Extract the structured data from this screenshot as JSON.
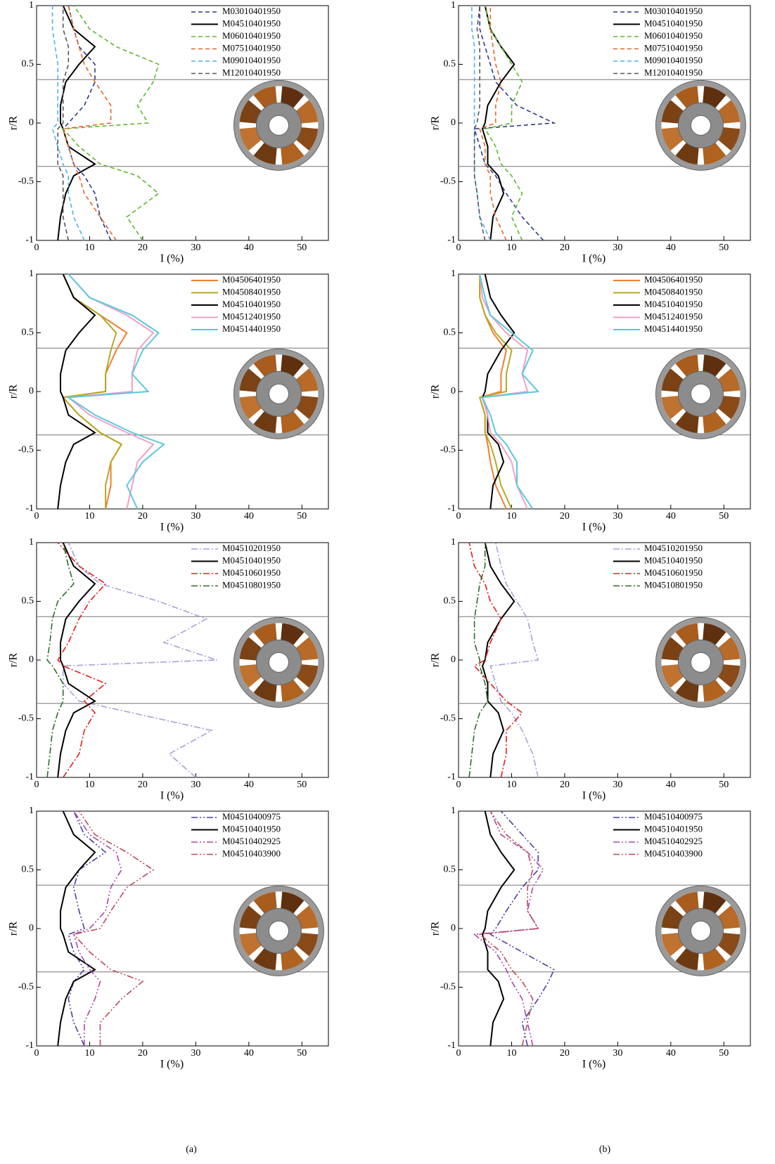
{
  "captions": [
    "(a)",
    "(b)"
  ],
  "chart_data": [
    {
      "type": "line",
      "xlabel": "I (%)",
      "ylabel": "r/R",
      "xlim": [
        0,
        55
      ],
      "xticks": [
        0,
        10,
        20,
        30,
        40,
        50
      ],
      "ylim": [
        -1,
        1
      ],
      "yticks": [
        -1,
        -0.5,
        0,
        0.5,
        1
      ],
      "hlines": [
        0.37,
        -0.37
      ],
      "y": [
        -1,
        -0.8,
        -0.6,
        -0.45,
        -0.35,
        -0.2,
        -0.05,
        0,
        0.15,
        0.35,
        0.5,
        0.65,
        0.8,
        1
      ],
      "series": [
        {
          "name": "M03010401950",
          "color": "#2b3990",
          "dash": "dashed",
          "values": [
            14,
            12,
            11,
            9,
            7,
            6,
            5,
            6,
            9,
            11,
            11,
            8,
            7,
            6
          ]
        },
        {
          "name": "M04510401950",
          "color": "#000000",
          "dash": "solid",
          "values": [
            4,
            4.5,
            5.5,
            7,
            11,
            6,
            5,
            4.5,
            4.5,
            5.5,
            8,
            11,
            7,
            5
          ]
        },
        {
          "name": "M06010401950",
          "color": "#5cb82e",
          "dash": "dashed",
          "values": [
            20,
            17,
            23,
            19,
            12,
            8,
            5,
            21,
            19,
            22,
            23,
            15,
            10,
            7
          ]
        },
        {
          "name": "M07510401950",
          "color": "#e0682a",
          "dash": "dashed",
          "values": [
            15,
            12,
            9,
            8,
            7,
            6,
            5,
            14,
            14,
            11,
            9,
            8,
            7,
            6
          ]
        },
        {
          "name": "M09010401950",
          "color": "#4bb4e6",
          "dash": "dashed",
          "values": [
            9,
            7,
            6,
            6,
            5,
            4,
            3,
            4,
            4,
            4,
            4,
            3.5,
            3,
            3
          ]
        },
        {
          "name": "M12010401950",
          "color": "#555555",
          "dash": "dashed",
          "values": [
            6,
            5,
            5,
            5,
            4,
            4,
            4,
            5,
            5,
            5,
            6,
            6,
            5,
            5
          ]
        }
      ]
    },
    {
      "type": "line",
      "xlabel": "I (%)",
      "ylabel": "r/R",
      "xlim": [
        0,
        55
      ],
      "xticks": [
        0,
        10,
        20,
        30,
        40,
        50
      ],
      "ylim": [
        -1,
        1
      ],
      "yticks": [
        -1,
        -0.5,
        0,
        0.5,
        1
      ],
      "hlines": [
        0.37,
        -0.37
      ],
      "y": [
        -1,
        -0.8,
        -0.6,
        -0.45,
        -0.35,
        -0.2,
        -0.05,
        0,
        0.15,
        0.35,
        0.5,
        0.65,
        0.8,
        1
      ],
      "series": [
        {
          "name": "M04506401950",
          "color": "#f07f2f",
          "dash": "solid",
          "values": [
            13,
            14,
            14,
            16,
            12,
            8,
            5,
            13,
            13,
            15,
            17,
            12,
            7,
            5
          ]
        },
        {
          "name": "M04508401950",
          "color": "#b5a823",
          "dash": "solid",
          "values": [
            13,
            13,
            14,
            16,
            12,
            8,
            5,
            13,
            13,
            14,
            15,
            12,
            7,
            5
          ]
        },
        {
          "name": "M04510401950",
          "color": "#000000",
          "dash": "solid",
          "values": [
            4,
            4.5,
            5.5,
            7,
            11,
            6,
            5,
            4.5,
            4.5,
            5.5,
            8,
            11,
            7,
            5
          ]
        },
        {
          "name": "M04512401950",
          "color": "#f0a0c8",
          "dash": "solid",
          "values": [
            17,
            18,
            19,
            22,
            17,
            10,
            6,
            18,
            18,
            19,
            22,
            17,
            10,
            6
          ]
        },
        {
          "name": "M04514401950",
          "color": "#5bc8dc",
          "dash": "solid",
          "values": [
            19,
            17,
            20,
            24,
            18,
            11,
            6,
            21,
            18,
            20,
            23,
            18,
            10,
            6
          ]
        }
      ]
    },
    {
      "type": "line",
      "xlabel": "I (%)",
      "ylabel": "r/R",
      "xlim": [
        0,
        55
      ],
      "xticks": [
        0,
        10,
        20,
        30,
        40,
        50
      ],
      "ylim": [
        -1,
        1
      ],
      "yticks": [
        -1,
        -0.5,
        0,
        0.5,
        1
      ],
      "hlines": [
        0.37,
        -0.37
      ],
      "y": [
        -1,
        -0.8,
        -0.6,
        -0.45,
        -0.35,
        -0.2,
        -0.05,
        0,
        0.15,
        0.35,
        0.5,
        0.65,
        0.8,
        1
      ],
      "series": [
        {
          "name": "M04510201950",
          "color": "#a9a0d8",
          "dash": "dashdot",
          "values": [
            30,
            25,
            33,
            18,
            8,
            5,
            5,
            34,
            24,
            32,
            23,
            12,
            8,
            6
          ]
        },
        {
          "name": "M04510401950",
          "color": "#000000",
          "dash": "solid",
          "values": [
            4,
            4.5,
            5.5,
            7,
            11,
            6,
            5,
            4.5,
            4.5,
            5.5,
            8,
            11,
            7,
            5
          ]
        },
        {
          "name": "M04510601950",
          "color": "#e02020",
          "dash": "dashdot",
          "values": [
            5,
            8,
            9,
            11,
            9,
            13,
            5,
            4,
            6,
            8,
            10,
            13,
            8,
            4
          ]
        },
        {
          "name": "M04510801950",
          "color": "#2b6e2b",
          "dash": "dashdot",
          "values": [
            2,
            2.5,
            3,
            4,
            5,
            5,
            3,
            2,
            2.5,
            3,
            4,
            7,
            6,
            5
          ]
        }
      ]
    },
    {
      "type": "line",
      "xlabel": "I (%)",
      "ylabel": "r/R",
      "xlim": [
        0,
        55
      ],
      "xticks": [
        0,
        10,
        20,
        30,
        40,
        50
      ],
      "ylim": [
        -1,
        1
      ],
      "yticks": [
        -1,
        -0.5,
        0,
        0.5,
        1
      ],
      "hlines": [
        0.37,
        -0.37
      ],
      "y": [
        -1,
        -0.8,
        -0.6,
        -0.45,
        -0.35,
        -0.2,
        -0.05,
        0,
        0.15,
        0.35,
        0.5,
        0.65,
        0.8,
        1
      ],
      "series": [
        {
          "name": "M04510400975",
          "color": "#4a3fa0",
          "dash": "dashdotdot",
          "values": [
            9,
            7,
            6,
            7,
            9,
            7,
            6,
            9,
            8,
            7,
            8,
            13,
            9,
            7
          ]
        },
        {
          "name": "M04510401950",
          "color": "#000000",
          "dash": "solid",
          "values": [
            4,
            4.5,
            5.5,
            7,
            11,
            6,
            5,
            4.5,
            4.5,
            5.5,
            8,
            11,
            7,
            5
          ]
        },
        {
          "name": "M04510402925",
          "color": "#a54aa5",
          "dash": "dashdotdot",
          "values": [
            9,
            9,
            11,
            12,
            10,
            8,
            7,
            10,
            13,
            14,
            16,
            15,
            10,
            7
          ]
        },
        {
          "name": "M04510403900",
          "color": "#b84a5a",
          "dash": "dashdotdot",
          "values": [
            12,
            12,
            16,
            20,
            14,
            10,
            7,
            12,
            14,
            17,
            22,
            17,
            11,
            8
          ]
        }
      ]
    },
    {
      "type": "line",
      "xlabel": "I (%)",
      "ylabel": "r/R",
      "xlim": [
        0,
        55
      ],
      "xticks": [
        0,
        10,
        20,
        30,
        40,
        50
      ],
      "ylim": [
        -1,
        1
      ],
      "yticks": [
        -1,
        -0.5,
        0,
        0.5,
        1
      ],
      "hlines": [
        0.37,
        -0.37
      ],
      "y": [
        -1,
        -0.8,
        -0.6,
        -0.45,
        -0.35,
        -0.2,
        -0.05,
        0,
        0.15,
        0.35,
        0.5,
        0.65,
        0.8,
        1
      ],
      "series": [
        {
          "name": "M03010401950",
          "color": "#2b3990",
          "dash": "dashed",
          "values": [
            16,
            12,
            9,
            7,
            5,
            4,
            3,
            18,
            11,
            7,
            6,
            5,
            4,
            4
          ]
        },
        {
          "name": "M04510401950",
          "color": "#000000",
          "dash": "solid",
          "values": [
            6,
            6.5,
            8.5,
            7.5,
            5.5,
            5.5,
            4.5,
            5,
            5.5,
            8,
            10.5,
            8,
            6,
            5
          ]
        },
        {
          "name": "M06010401950",
          "color": "#5cb82e",
          "dash": "dashed",
          "values": [
            12,
            10,
            12,
            10,
            8,
            7,
            5,
            10,
            10,
            12,
            10,
            8,
            6,
            5
          ]
        },
        {
          "name": "M07510401950",
          "color": "#e0682a",
          "dash": "dashed",
          "values": [
            9,
            7,
            6,
            6,
            5,
            5,
            4,
            7,
            7,
            8,
            7,
            6.5,
            6,
            6
          ]
        },
        {
          "name": "M09010401950",
          "color": "#4bb4e6",
          "dash": "dashed",
          "values": [
            6,
            4,
            3.5,
            3,
            3,
            3,
            3,
            3,
            3,
            3,
            3,
            3,
            2.5,
            2.5
          ]
        },
        {
          "name": "M12010401950",
          "color": "#555555",
          "dash": "dashed",
          "values": [
            5,
            4,
            3.5,
            3,
            3,
            3,
            3,
            3.5,
            4,
            4,
            4,
            4,
            3.5,
            4
          ]
        }
      ]
    },
    {
      "type": "line",
      "xlabel": "I (%)",
      "ylabel": "r/R",
      "xlim": [
        0,
        55
      ],
      "xticks": [
        0,
        10,
        20,
        30,
        40,
        50
      ],
      "ylim": [
        -1,
        1
      ],
      "yticks": [
        -1,
        -0.5,
        0,
        0.5,
        1
      ],
      "hlines": [
        0.37,
        -0.37
      ],
      "y": [
        -1,
        -0.8,
        -0.6,
        -0.45,
        -0.35,
        -0.2,
        -0.05,
        0,
        0.15,
        0.35,
        0.5,
        0.65,
        0.8,
        1
      ],
      "series": [
        {
          "name": "M04506401950",
          "color": "#f07f2f",
          "dash": "solid",
          "values": [
            9,
            7,
            6,
            5.5,
            5,
            5,
            4,
            8,
            8,
            9,
            6.5,
            5,
            4,
            4
          ]
        },
        {
          "name": "M04508401950",
          "color": "#b5a823",
          "dash": "solid",
          "values": [
            10,
            8,
            7,
            6,
            5,
            5,
            4,
            9,
            9,
            10,
            7,
            5,
            4,
            4
          ]
        },
        {
          "name": "M04510401950",
          "color": "#000000",
          "dash": "solid",
          "values": [
            6,
            6.5,
            8.5,
            7.5,
            5.5,
            5.5,
            4.5,
            5,
            5.5,
            8,
            10.5,
            8,
            6,
            5
          ]
        },
        {
          "name": "M04512401950",
          "color": "#f0a0c8",
          "dash": "solid",
          "values": [
            13,
            11,
            10,
            8,
            6,
            5.5,
            4.5,
            13,
            12,
            13,
            9,
            6,
            4.5,
            4
          ]
        },
        {
          "name": "M04514401950",
          "color": "#5bc8dc",
          "dash": "solid",
          "values": [
            14,
            11,
            11,
            9,
            7,
            6,
            4.5,
            15,
            12,
            14,
            10,
            6,
            5,
            4
          ]
        }
      ]
    },
    {
      "type": "line",
      "xlabel": "I (%)",
      "ylabel": "r/R",
      "xlim": [
        0,
        55
      ],
      "xticks": [
        0,
        10,
        20,
        30,
        40,
        50
      ],
      "ylim": [
        -1,
        1
      ],
      "yticks": [
        -1,
        -0.5,
        0,
        0.5,
        1
      ],
      "hlines": [
        0.37,
        -0.37
      ],
      "y": [
        -1,
        -0.8,
        -0.6,
        -0.45,
        -0.35,
        -0.2,
        -0.05,
        0,
        0.15,
        0.35,
        0.5,
        0.65,
        0.8,
        1
      ],
      "series": [
        {
          "name": "M04510201950",
          "color": "#a9a0d8",
          "dash": "dashdot",
          "values": [
            15,
            14,
            12,
            10,
            8,
            7,
            6,
            15,
            14,
            13,
            11,
            9,
            8,
            7
          ]
        },
        {
          "name": "M04510401950",
          "color": "#000000",
          "dash": "solid",
          "values": [
            6,
            6.5,
            8.5,
            7.5,
            5.5,
            5.5,
            4.5,
            5,
            5.5,
            8,
            10.5,
            8,
            6,
            5
          ]
        },
        {
          "name": "M04510601950",
          "color": "#e02020",
          "dash": "dashdot",
          "values": [
            8,
            9,
            9,
            12,
            9,
            6,
            3,
            5,
            6,
            8,
            6,
            5,
            3,
            2
          ]
        },
        {
          "name": "M04510801950",
          "color": "#2b6e2b",
          "dash": "dashdot",
          "values": [
            2,
            2.5,
            3,
            4,
            5.5,
            5,
            4,
            4,
            3,
            3,
            3.5,
            4,
            5,
            5
          ]
        }
      ]
    },
    {
      "type": "line",
      "xlabel": "I (%)",
      "ylabel": "r/R",
      "xlim": [
        0,
        55
      ],
      "xticks": [
        0,
        10,
        20,
        30,
        40,
        50
      ],
      "ylim": [
        -1,
        1
      ],
      "yticks": [
        -1,
        -0.5,
        0,
        0.5,
        1
      ],
      "hlines": [
        0.37,
        -0.37
      ],
      "y": [
        -1,
        -0.8,
        -0.6,
        -0.45,
        -0.35,
        -0.2,
        -0.05,
        0,
        0.15,
        0.35,
        0.5,
        0.65,
        0.8,
        1
      ],
      "series": [
        {
          "name": "M04510400975",
          "color": "#4a3fa0",
          "dash": "dashdotdot",
          "values": [
            13,
            12,
            15,
            17,
            18,
            12,
            6,
            7,
            9,
            12,
            15,
            15,
            12,
            8
          ]
        },
        {
          "name": "M04510401950",
          "color": "#000000",
          "dash": "solid",
          "values": [
            6,
            6.5,
            8.5,
            7.5,
            5.5,
            5.5,
            4.5,
            5,
            5.5,
            8,
            10.5,
            8,
            6,
            5
          ]
        },
        {
          "name": "M04510402925",
          "color": "#a54aa5",
          "dash": "dashdotdot",
          "values": [
            14,
            13,
            12,
            10,
            9,
            7,
            3,
            15,
            13,
            14,
            16,
            13,
            8,
            6
          ]
        },
        {
          "name": "M04510403900",
          "color": "#b84a5a",
          "dash": "dashdotdot",
          "values": [
            12,
            13,
            14,
            12,
            10,
            8,
            4,
            15,
            13,
            13,
            14,
            13,
            9,
            6
          ]
        }
      ]
    }
  ]
}
